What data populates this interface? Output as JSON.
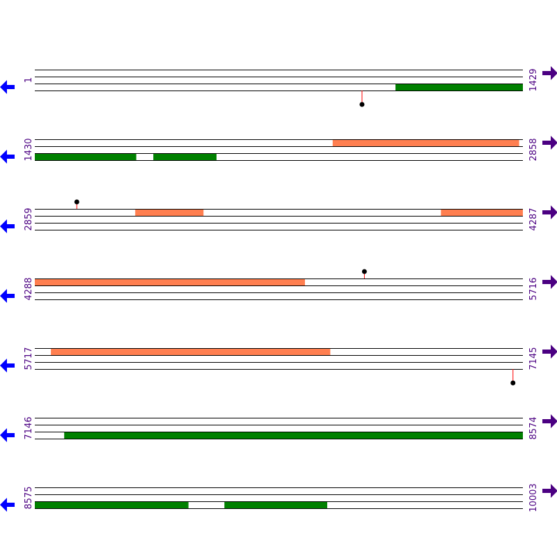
{
  "colors": {
    "background": "#ffffff",
    "track_line": "#000000",
    "forward_feature": "#ff7f50",
    "reverse_feature": "#008000",
    "marker_stem": "#ff0000",
    "marker_dot": "#000000",
    "left_arrow": "#0000ff",
    "right_arrow": "#4b0082",
    "coordinate_text": "#4b0082"
  },
  "icons": {
    "left": "arrow-left-icon",
    "right": "arrow-right-icon"
  },
  "chart_data": {
    "type": "linear-sequence-map",
    "total_length": 10003,
    "rows": [
      {
        "start": 1,
        "end": 1429,
        "start_label": "1",
        "end_label": "1429",
        "features": [
          {
            "strand": "reverse",
            "start": 1057,
            "end": 1429
          }
        ],
        "markers": [
          {
            "position": 959,
            "direction": "down"
          }
        ]
      },
      {
        "start": 1430,
        "end": 2858,
        "start_label": "1430",
        "end_label": "2858",
        "features": [
          {
            "strand": "forward",
            "start": 2302,
            "end": 2847
          },
          {
            "strand": "reverse",
            "start": 1430,
            "end": 1726
          },
          {
            "strand": "reverse",
            "start": 1777,
            "end": 1961
          }
        ],
        "markers": []
      },
      {
        "start": 2859,
        "end": 4287,
        "start_label": "2859",
        "end_label": "4287",
        "features": [
          {
            "strand": "forward",
            "start": 3153,
            "end": 3352
          },
          {
            "strand": "forward",
            "start": 4048,
            "end": 4287
          }
        ],
        "markers": [
          {
            "position": 2982,
            "direction": "up"
          }
        ]
      },
      {
        "start": 4288,
        "end": 5716,
        "start_label": "4288",
        "end_label": "5716",
        "features": [
          {
            "strand": "forward",
            "start": 4288,
            "end": 5078
          }
        ],
        "markers": [
          {
            "position": 5253,
            "direction": "up"
          }
        ]
      },
      {
        "start": 5717,
        "end": 7145,
        "start_label": "5717",
        "end_label": "7145",
        "features": [
          {
            "strand": "forward",
            "start": 5764,
            "end": 6581
          }
        ],
        "markers": [
          {
            "position": 7117,
            "direction": "down"
          }
        ]
      },
      {
        "start": 7146,
        "end": 8574,
        "start_label": "7146",
        "end_label": "8574",
        "features": [
          {
            "strand": "reverse",
            "start": 7232,
            "end": 8574
          }
        ],
        "markers": []
      },
      {
        "start": 8575,
        "end": 10003,
        "start_label": "8575",
        "end_label": "10003",
        "features": [
          {
            "strand": "reverse",
            "start": 8575,
            "end": 9024
          },
          {
            "strand": "reverse",
            "start": 9130,
            "end": 9430
          }
        ],
        "markers": []
      }
    ]
  }
}
